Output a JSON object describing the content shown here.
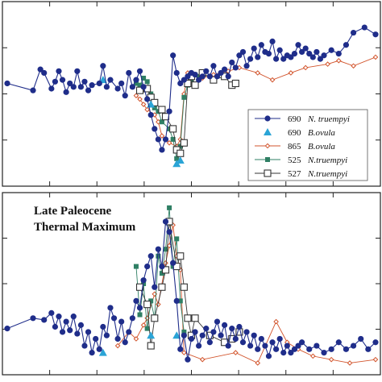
{
  "chart_data": [
    {
      "type": "line",
      "panel": "top",
      "title": "",
      "xlabel": "",
      "ylabel": "",
      "xlim": [
        0,
        100
      ],
      "ylim": [
        0,
        100
      ],
      "grid": false,
      "legend": "bottom-right",
      "series": [
        {
          "name": "N. truempyi",
          "site": "690",
          "color": "#1f2d8a",
          "marker": "circle",
          "x": [
            0,
            7,
            9,
            10,
            12,
            13,
            14,
            15,
            16,
            17,
            18,
            19,
            20,
            21,
            22,
            23,
            25,
            26,
            27,
            28,
            30,
            31,
            32,
            33,
            34,
            35,
            36,
            37,
            38,
            39,
            40,
            41,
            42,
            43,
            44,
            45,
            46,
            47,
            48,
            49,
            50,
            51,
            52,
            53,
            54,
            55,
            56,
            57,
            58,
            59,
            60,
            61,
            62,
            63,
            64,
            65,
            66,
            67,
            68,
            69,
            70,
            71,
            72,
            73,
            74,
            75,
            76,
            77,
            78,
            79,
            80,
            81,
            82,
            83,
            84,
            85,
            86,
            88,
            90,
            92,
            94,
            97,
            100
          ],
          "y": [
            56,
            52,
            64,
            62,
            53,
            57,
            63,
            58,
            51,
            56,
            54,
            63,
            54,
            57,
            52,
            55,
            56,
            66,
            54,
            58,
            53,
            56,
            49,
            62,
            54,
            58,
            63,
            54,
            47,
            38,
            30,
            24,
            18,
            24,
            40,
            72,
            62,
            56,
            58,
            60,
            62,
            61,
            58,
            60,
            63,
            60,
            66,
            60,
            62,
            64,
            60,
            68,
            65,
            72,
            74,
            66,
            70,
            76,
            71,
            78,
            74,
            73,
            80,
            70,
            75,
            70,
            72,
            71,
            73,
            78,
            74,
            76,
            73,
            71,
            74,
            70,
            72,
            75,
            73,
            78,
            85,
            88,
            84
          ]
        },
        {
          "name": "B.ovula",
          "site": "690",
          "color": "#2aa4d6",
          "marker": "triangle",
          "x": [
            26,
            39,
            46,
            47
          ],
          "y": [
            58,
            44,
            10,
            12
          ]
        },
        {
          "name": "B.ovula",
          "site": "865",
          "color": "#d2542c",
          "marker": "diamond",
          "x": [
            35,
            36,
            37,
            38,
            40,
            41,
            42,
            44,
            46,
            47,
            48,
            49,
            51,
            53,
            56,
            60,
            63,
            68,
            72,
            77,
            81,
            87,
            90,
            94,
            100
          ],
          "y": [
            49,
            47,
            44,
            41,
            38,
            34,
            26,
            22,
            20,
            24,
            50,
            62,
            61,
            59,
            61,
            63,
            65,
            62,
            58,
            62,
            65,
            67,
            69,
            66,
            71
          ]
        },
        {
          "name": "N.truempyi",
          "site": "525",
          "color": "#2f7f64",
          "marker": "square-filled",
          "x": [
            35,
            36,
            37,
            38,
            39,
            40,
            41,
            42,
            44,
            45,
            46,
            47,
            48,
            49,
            50,
            51,
            52
          ],
          "y": [
            56,
            55,
            59,
            57,
            50,
            42,
            40,
            34,
            30,
            24,
            13,
            20,
            48,
            55,
            58,
            61,
            60
          ]
        },
        {
          "name": "N.truempyi",
          "site": "527",
          "color": "#333333",
          "marker": "square-open",
          "x": [
            36,
            38,
            39,
            40,
            42,
            43,
            45,
            46,
            47,
            48,
            49,
            50,
            51,
            53,
            56,
            59,
            61,
            62
          ],
          "y": [
            52,
            53,
            48,
            45,
            41,
            37,
            30,
            18,
            16,
            22,
            56,
            60,
            55,
            62,
            58,
            60,
            55,
            56
          ]
        }
      ]
    },
    {
      "type": "line",
      "panel": "bottom",
      "title": "",
      "xlabel": "",
      "ylabel": "",
      "xlim": [
        0,
        100
      ],
      "ylim": [
        0,
        100
      ],
      "grid": false,
      "annotation": [
        "Late Paleocene",
        "Thermal Maximum"
      ],
      "series": [
        {
          "name": "N. truempyi",
          "site": "690",
          "color": "#1f2d8a",
          "marker": "circle",
          "x": [
            0,
            7,
            10,
            12,
            13,
            14,
            15,
            16,
            17,
            18,
            19,
            20,
            21,
            22,
            23,
            24,
            25,
            26,
            27,
            28,
            29,
            30,
            31,
            32,
            33,
            34,
            35,
            36,
            37,
            38,
            39,
            40,
            41,
            42,
            43,
            44,
            45,
            46,
            47,
            48,
            49,
            50,
            51,
            52,
            53,
            54,
            55,
            56,
            57,
            58,
            59,
            60,
            61,
            62,
            63,
            64,
            65,
            66,
            67,
            68,
            69,
            70,
            71,
            72,
            73,
            74,
            75,
            76,
            77,
            78,
            79,
            80,
            82,
            84,
            86,
            88,
            90,
            92,
            94,
            96,
            98,
            100
          ],
          "y": [
            24,
            30,
            29,
            33,
            25,
            31,
            22,
            28,
            23,
            31,
            21,
            26,
            14,
            22,
            10,
            18,
            12,
            25,
            20,
            36,
            30,
            18,
            28,
            16,
            22,
            30,
            40,
            36,
            52,
            60,
            66,
            48,
            70,
            60,
            86,
            80,
            62,
            40,
            12,
            20,
            6,
            18,
            22,
            14,
            20,
            24,
            16,
            22,
            28,
            20,
            26,
            14,
            24,
            18,
            25,
            16,
            22,
            14,
            20,
            12,
            18,
            14,
            8,
            16,
            12,
            18,
            10,
            14,
            10,
            12,
            14,
            16,
            12,
            14,
            10,
            12,
            16,
            12,
            14,
            18,
            12,
            16
          ]
        },
        {
          "name": "B.ovula",
          "site": "690",
          "color": "#2aa4d6",
          "marker": "triangle",
          "x": [
            26,
            39,
            46
          ],
          "y": [
            10,
            20,
            20
          ]
        },
        {
          "name": "B.ovula",
          "site": "865",
          "color": "#d2542c",
          "marker": "diamond",
          "x": [
            30,
            33,
            35,
            37,
            38,
            40,
            41,
            43,
            44,
            45,
            46,
            47,
            48,
            53,
            62,
            68,
            73,
            76,
            79,
            83,
            88,
            93,
            100
          ],
          "y": [
            14,
            22,
            18,
            26,
            30,
            44,
            38,
            62,
            72,
            84,
            66,
            58,
            10,
            6,
            10,
            4,
            28,
            16,
            12,
            8,
            6,
            4,
            6
          ]
        },
        {
          "name": "N.truempyi",
          "site": "525",
          "color": "#2f7f64",
          "marker": "square-filled",
          "x": [
            35,
            36,
            37,
            38,
            39,
            40,
            41,
            42,
            43,
            44,
            45,
            46,
            47,
            48
          ],
          "y": [
            60,
            32,
            50,
            24,
            40,
            30,
            66,
            56,
            70,
            94,
            60,
            76,
            40,
            22
          ]
        },
        {
          "name": "N.truempyi",
          "site": "527",
          "color": "#333333",
          "marker": "square-open",
          "x": [
            36,
            38,
            39,
            40,
            42,
            43,
            44,
            46,
            47,
            48,
            49,
            50,
            51,
            55,
            59,
            61,
            63
          ],
          "y": [
            48,
            38,
            14,
            30,
            48,
            58,
            86,
            60,
            66,
            48,
            30,
            20,
            30,
            20,
            16,
            18,
            22
          ]
        }
      ]
    }
  ]
}
